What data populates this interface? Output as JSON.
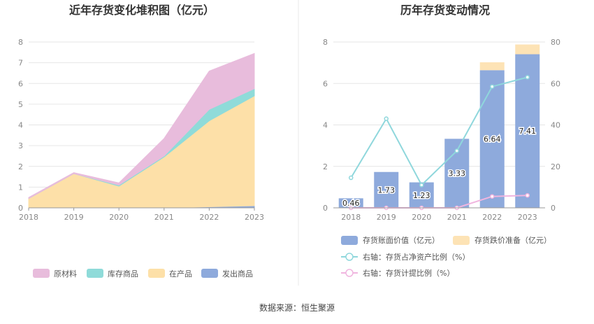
{
  "source": "数据来源：恒生聚源",
  "colors": {
    "raw": "#e8bcdc",
    "stock": "#8fdbd9",
    "wip": "#fde0a8",
    "shipped": "#8eaadc",
    "book": "#8eaadc",
    "reserve": "#fde3b5",
    "ratio_net": "#8fd7dc",
    "ratio_reserve": "#f0b5df"
  },
  "chart_data": [
    {
      "type": "area",
      "title": "近年存货变化堆积图（亿元）",
      "categories": [
        "2018",
        "2019",
        "2020",
        "2021",
        "2022",
        "2023"
      ],
      "ylim": [
        0,
        8
      ],
      "yticks": [
        "0",
        "1",
        "2",
        "3",
        "4",
        "5",
        "6",
        "7",
        "8"
      ],
      "stacked": true,
      "grid": true,
      "legend_position": "bottom",
      "series": [
        {
          "name": "发出商品",
          "key": "shipped",
          "values": [
            0.0,
            0.0,
            0.0,
            0.0,
            0.05,
            0.1
          ]
        },
        {
          "name": "在产品",
          "key": "wip",
          "values": [
            0.45,
            1.65,
            1.05,
            2.45,
            4.15,
            5.3
          ]
        },
        {
          "name": "库存商品",
          "key": "stock",
          "values": [
            0.0,
            0.0,
            0.05,
            0.05,
            0.55,
            0.35
          ]
        },
        {
          "name": "原材料",
          "key": "raw",
          "values": [
            0.05,
            0.05,
            0.1,
            0.85,
            1.85,
            1.7
          ]
        }
      ],
      "legend_order": [
        "原材料",
        "库存商品",
        "在产品",
        "发出商品"
      ]
    },
    {
      "type": "bar",
      "title": "历年存货变动情况",
      "categories": [
        "2018",
        "2019",
        "2020",
        "2021",
        "2022",
        "2023"
      ],
      "ylim": [
        0,
        8
      ],
      "yticks": [
        "0",
        "2",
        "4",
        "6",
        "8"
      ],
      "y2lim": [
        0,
        80
      ],
      "y2ticks": [
        "0",
        "20",
        "40",
        "60",
        "80"
      ],
      "stacked": true,
      "grid": true,
      "legend_position": "bottom",
      "series": [
        {
          "name": "存货账面价值（亿元）",
          "key": "book",
          "axis": "left",
          "values": [
            0.46,
            1.73,
            1.23,
            3.33,
            6.64,
            7.41
          ],
          "labels": [
            "0.46",
            "1.73",
            "1.23",
            "3.33",
            "6.64",
            "7.41"
          ]
        },
        {
          "name": "存货跌价准备（亿元）",
          "key": "reserve",
          "axis": "left",
          "values": [
            0.0,
            0.0,
            0.0,
            0.0,
            0.38,
            0.47
          ]
        }
      ],
      "lines": [
        {
          "name": "右轴：存货占净资产比例（%）",
          "key": "ratio_net",
          "axis": "right",
          "values": [
            14.5,
            43.0,
            11.0,
            27.5,
            58.5,
            63.0
          ]
        },
        {
          "name": "右轴：存货计提比例（%）",
          "key": "ratio_reserve",
          "axis": "right",
          "values": [
            0.0,
            0.0,
            0.0,
            0.0,
            5.5,
            6.0
          ]
        }
      ]
    }
  ]
}
